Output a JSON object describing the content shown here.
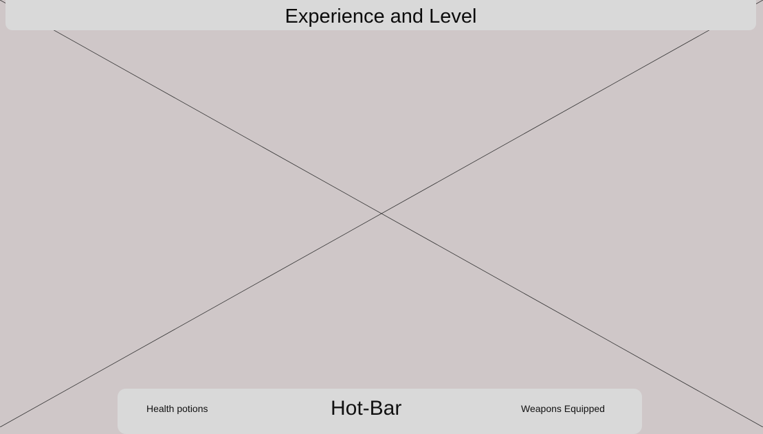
{
  "screen": {
    "background": "#cfc7c8"
  },
  "top_bar": {
    "title": "Experience and Level"
  },
  "hotbar": {
    "left_label": "Health potions",
    "center_label": "Hot-Bar",
    "right_label": "Weapons Equipped"
  },
  "placeholder": {
    "kind": "crossed-placeholder"
  }
}
